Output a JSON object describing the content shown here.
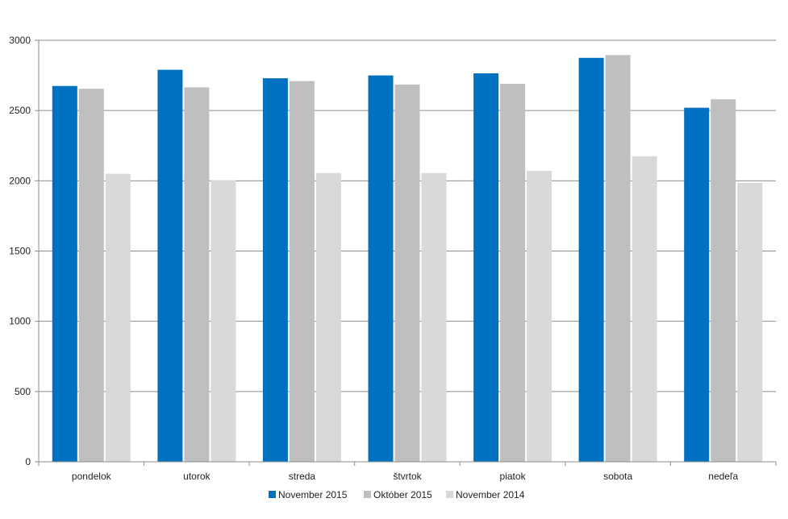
{
  "chart_data": {
    "type": "bar",
    "categories": [
      "pondelok",
      "utorok",
      "streda",
      "štvrtok",
      "piatok",
      "sobota",
      "nedeľa"
    ],
    "series": [
      {
        "name": "November 2015",
        "color": "#0070C0",
        "values": [
          2675,
          2790,
          2730,
          2750,
          2765,
          2875,
          2520
        ]
      },
      {
        "name": "Október 2015",
        "color": "#BFBFBF",
        "values": [
          2655,
          2665,
          2710,
          2685,
          2690,
          2895,
          2580
        ]
      },
      {
        "name": "November 2014",
        "color": "#D9D9D9",
        "values": [
          2050,
          2005,
          2055,
          2055,
          2070,
          2175,
          1985
        ]
      }
    ],
    "ylim": [
      0,
      3000
    ],
    "yticks": [
      0,
      500,
      1000,
      1500,
      2000,
      2500,
      3000
    ],
    "grid": true,
    "legend": "bottom"
  }
}
